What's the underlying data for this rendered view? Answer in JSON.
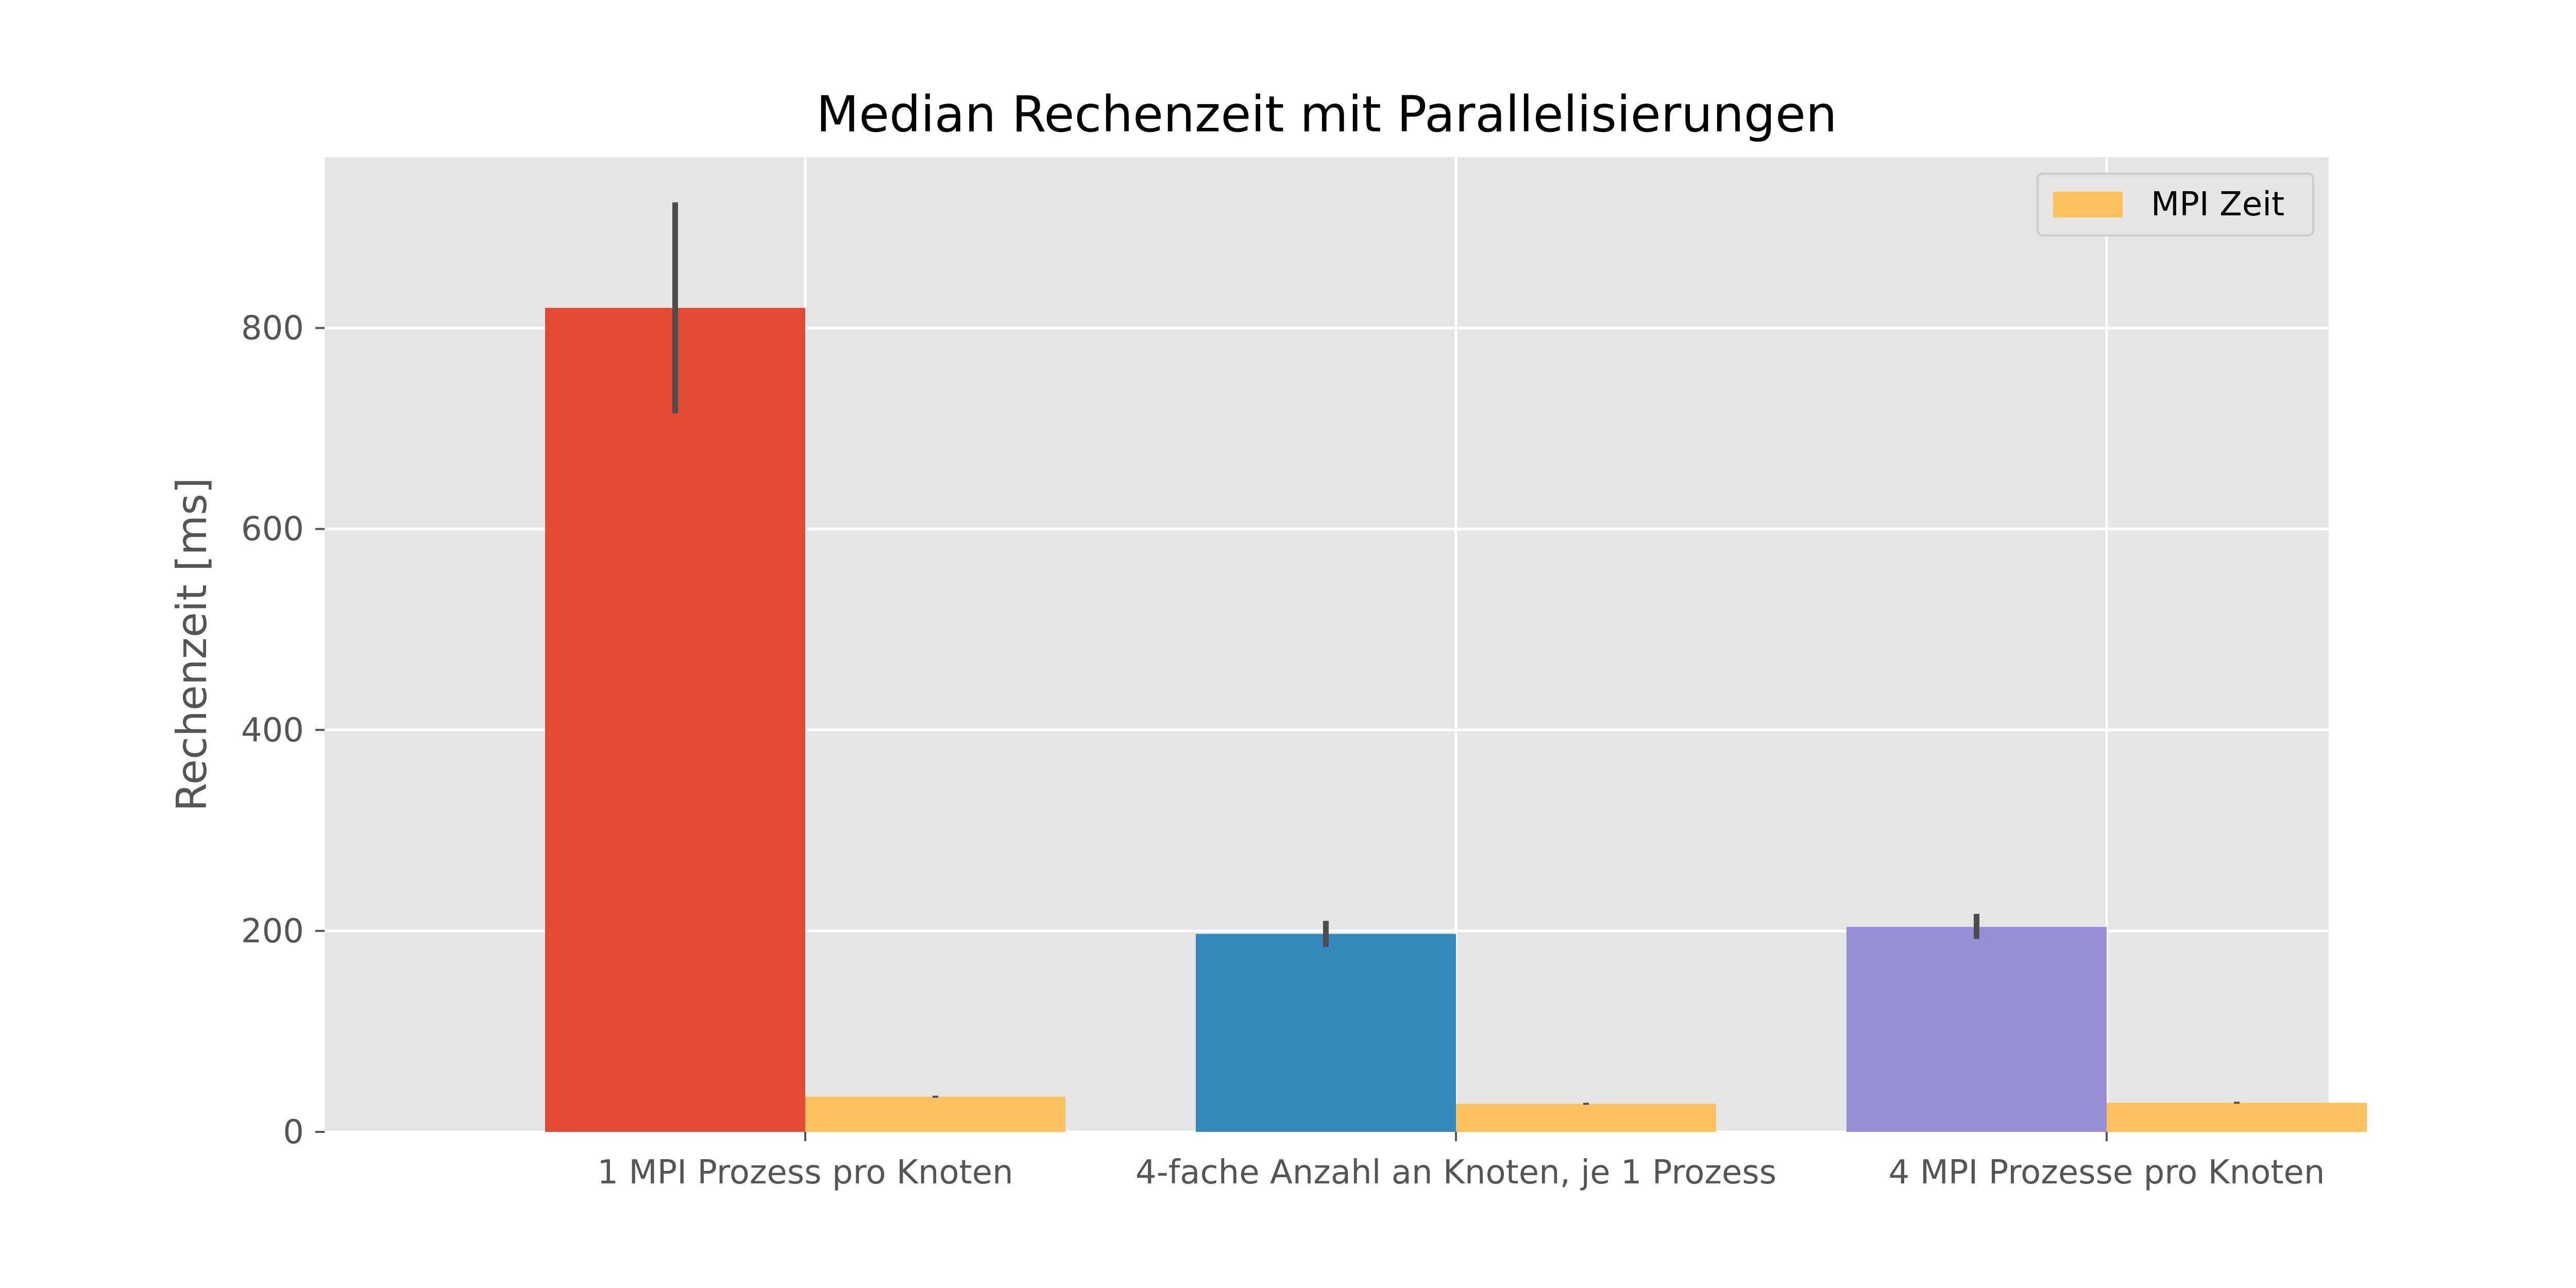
{
  "chart_data": {
    "type": "bar",
    "title": "Median Rechenzeit mit Parallelisierungen",
    "xlabel": "",
    "ylabel": "Rechenzeit [ms]",
    "ylim": [
      0,
      970
    ],
    "yticks": [
      0,
      200,
      400,
      600,
      800
    ],
    "grid": true,
    "legend_position": "top-right",
    "categories": [
      "1 MPI Prozess pro Knoten",
      "4-fache Anzahl an Knoten, je 1 Prozess",
      "4 MPI Prozesse pro Knoten"
    ],
    "series": [
      {
        "values": [
          820,
          197,
          204
        ],
        "error_low": [
          715,
          184,
          192
        ],
        "error_high": [
          925,
          210,
          217
        ],
        "colors": [
          "#E24A33",
          "#348ABD",
          "#988ED5"
        ]
      },
      {
        "name": "MPI Zeit",
        "values": [
          35,
          28,
          29
        ],
        "error_low": [
          34,
          27,
          28
        ],
        "error_high": [
          36,
          29,
          30
        ],
        "colors": [
          "#FBC15E",
          "#FBC15E",
          "#FBC15E"
        ]
      }
    ],
    "background_color": "#E5E5E5",
    "grid_color": "#FFFFFF",
    "errorbar_color": "#4D4D4D"
  }
}
